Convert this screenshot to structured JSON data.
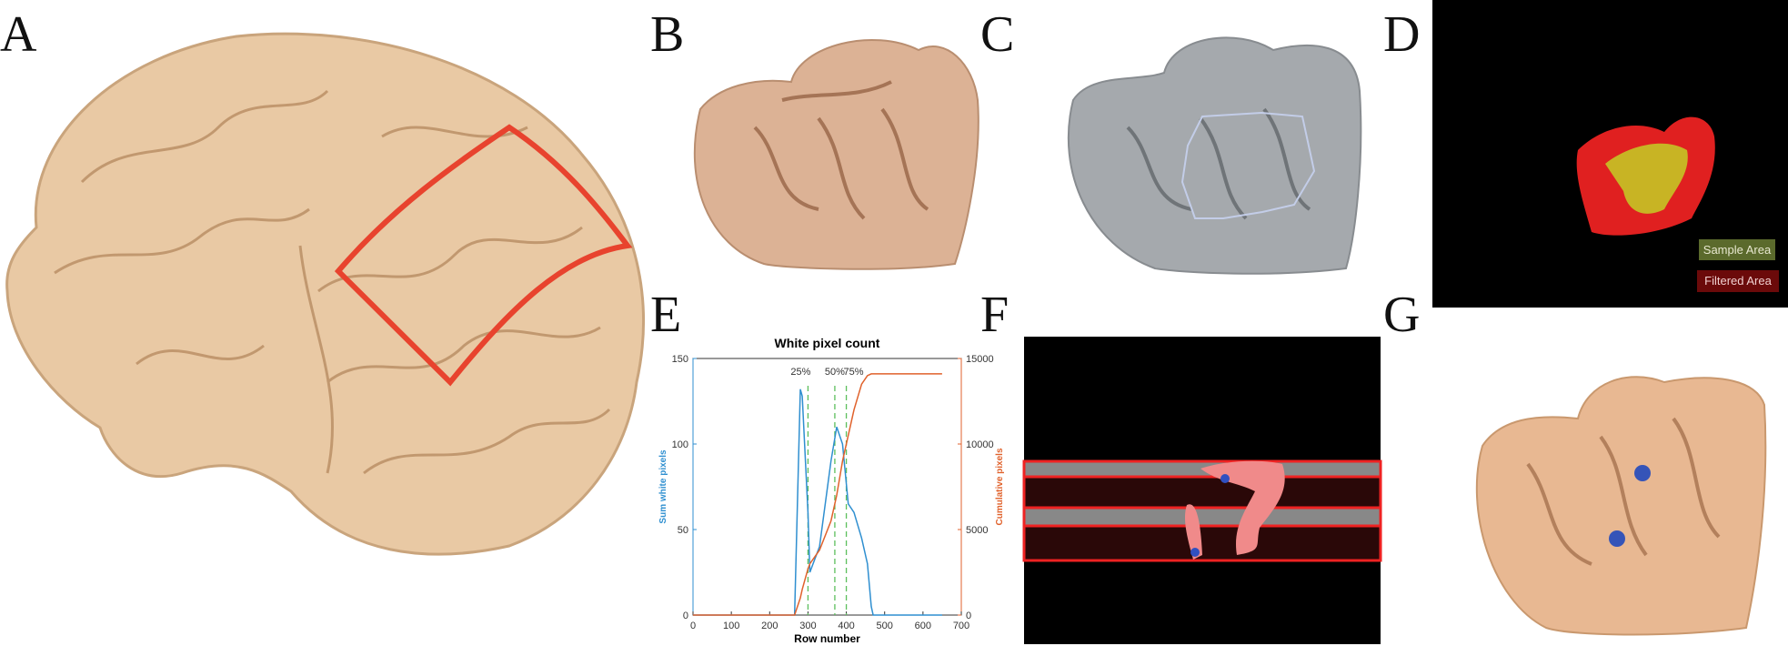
{
  "panels": [
    "A",
    "B",
    "C",
    "D",
    "E",
    "F",
    "G"
  ],
  "legend": [
    "Sample Area",
    "Filtered Area"
  ],
  "chart_data": {
    "type": "line",
    "title": "White pixel count",
    "xlabel": "Row number",
    "ylabel": "Sum white pixels",
    "y2label": "Cumulative pixels",
    "x": [
      0,
      265,
      280,
      285,
      300,
      305,
      330,
      360,
      375,
      390,
      405,
      420,
      440,
      455,
      465,
      470,
      650
    ],
    "series": [
      {
        "name": "Sum white pixels",
        "color": "#2f8fd0",
        "values": [
          0,
          0,
          132,
          128,
          60,
          25,
          40,
          90,
          110,
          100,
          65,
          60,
          45,
          30,
          5,
          0,
          0
        ]
      },
      {
        "name": "Cumulative pixels",
        "color": "#e0622c",
        "axis": "y2",
        "values": [
          0,
          0,
          1000,
          1500,
          2700,
          3000,
          3800,
          5500,
          7000,
          9000,
          10500,
          12000,
          13500,
          14000,
          14100,
          14100,
          14100
        ]
      }
    ],
    "xlim": [
      0,
      700
    ],
    "xticks": [
      0,
      100,
      200,
      300,
      400,
      500,
      600,
      700
    ],
    "ylim": [
      0,
      150
    ],
    "yticks": [
      0,
      50,
      100,
      150
    ],
    "y2lim": [
      0,
      15000
    ],
    "y2ticks": [
      0,
      5000,
      10000,
      15000
    ],
    "markers": [
      {
        "x": 300,
        "label": "25%"
      },
      {
        "x": 370,
        "label": "50%"
      },
      {
        "x": 400,
        "label": "75%"
      }
    ],
    "marker_color": "#5cbf5c"
  }
}
